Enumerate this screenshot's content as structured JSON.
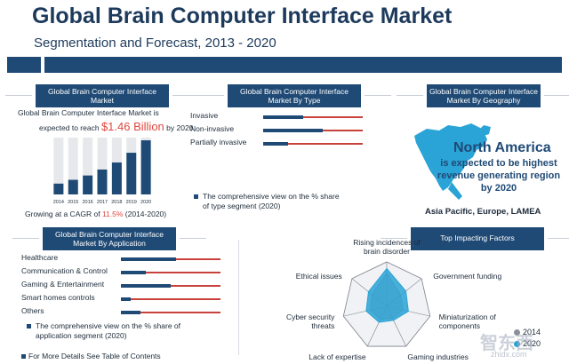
{
  "header": {
    "title": "Global Brain Computer Interface Market",
    "subtitle": "Segmentation and Forecast, 2013 - 2020"
  },
  "market_panel": {
    "heading": "Global Brain Computer Interface Market",
    "line1": "Global Brain Computer Interface Market is",
    "line2_prefix": "expected to reach",
    "value": "$1.46 Billion",
    "line2_suffix": "by 2020",
    "growth_prefix": "Growing at a CAGR of",
    "growth_value": "11.5%",
    "growth_suffix": "(2014-2020)"
  },
  "type_panel": {
    "heading": "Global Brain Computer Interface Market By Type",
    "rows": [
      {
        "label": "Invasive",
        "share": 0.4
      },
      {
        "label": "Non-invasive",
        "share": 0.6
      },
      {
        "label": "Partially invasive",
        "share": 0.25
      }
    ],
    "note": "The comprehensive view on the % share of type segment (2020)"
  },
  "geo_panel": {
    "heading": "Global Brain Computer Interface Market By Geography",
    "region": "North America",
    "desc": "is expected to be highest revenue generating region by 2020",
    "others": "Asia Pacific, Europe, LAMEA"
  },
  "application_panel": {
    "heading": "Global Brain Computer Interface Market By Application",
    "rows": [
      {
        "label": "Healthcare",
        "share": 0.55
      },
      {
        "label": "Communication & Control",
        "share": 0.25
      },
      {
        "label": "Gaming & Entertainment",
        "share": 0.5
      },
      {
        "label": "Smart homes controls",
        "share": 0.1
      },
      {
        "label": "Others",
        "share": 0.2
      }
    ],
    "note": "The comprehensive view on the % share of application segment (2020)"
  },
  "factors_panel": {
    "heading": "Top Impacting Factors"
  },
  "footer": {
    "text": "For More Details See Table of Contents"
  },
  "watermark": {
    "text": "智东西",
    "sub": "zhidx.com"
  },
  "colors": {
    "navy": "#1f4a75",
    "red": "#e0473e",
    "teal": "#2aa3d6",
    "grey": "#8a8f99"
  },
  "chart_data": [
    {
      "type": "bar",
      "title": "Global Brain Computer Interface Market",
      "categories": [
        "2014",
        "2015",
        "2016",
        "2017",
        "2018",
        "2019",
        "2020"
      ],
      "values": [
        0.2,
        0.27,
        0.35,
        0.46,
        0.59,
        0.77,
        1.0
      ],
      "ylim": [
        0,
        1.05
      ],
      "xlabel": "",
      "ylabel": ""
    },
    {
      "type": "radar",
      "title": "Top Impacting Factors",
      "axes": [
        "Rising incidences of brain disorder",
        "Government funding",
        "Miniaturization of components",
        "Gaming industries",
        "Lack of expertise",
        "Cyber security threats",
        "Ethical issues"
      ],
      "range": [
        0,
        4
      ],
      "series": [
        {
          "name": "2014",
          "values": [
            3.0,
            1.6,
            1.5,
            1.2,
            1.3,
            1.5,
            1.7
          ]
        },
        {
          "name": "2020",
          "values": [
            3.4,
            2.2,
            2.0,
            1.4,
            1.6,
            1.9,
            2.1
          ]
        }
      ]
    }
  ]
}
